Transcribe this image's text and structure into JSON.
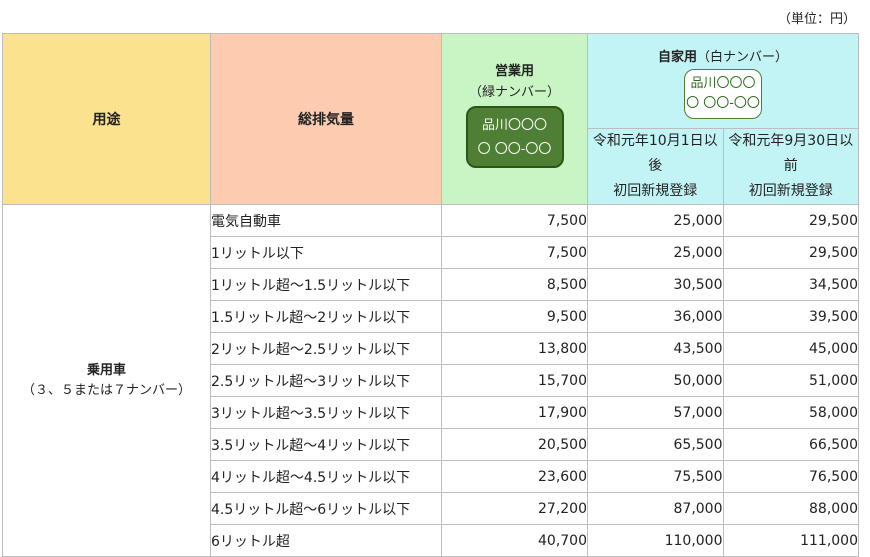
{
  "unit_label": "（単位：円）",
  "header": {
    "use": "用途",
    "displacement": "総排気量",
    "business": {
      "title": "営業用",
      "sub": "（緑ナンバー）",
      "plate_line1": "品川〇〇〇",
      "plate_line2": "〇 〇〇-〇〇"
    },
    "private": {
      "title": "自家用",
      "sub": "（白ナンバー）",
      "plate_line1": "品川〇〇〇",
      "plate_line2": "〇 〇〇-〇〇",
      "after": {
        "line1": "令和元年10月1日以後",
        "line2": "初回新規登録"
      },
      "before": {
        "line1": "令和元年9月30日以前",
        "line2": "初回新規登録"
      }
    }
  },
  "category": {
    "name": "乗用車",
    "sub": "（３、５または７ナンバー）"
  },
  "rows": [
    {
      "disp": "電気自動車",
      "business": "7,500",
      "after": "25,000",
      "before": "29,500"
    },
    {
      "disp": "1リットル以下",
      "business": "7,500",
      "after": "25,000",
      "before": "29,500"
    },
    {
      "disp": "1リットル超～1.5リットル以下",
      "business": "8,500",
      "after": "30,500",
      "before": "34,500"
    },
    {
      "disp": "1.5リットル超～2リットル以下",
      "business": "9,500",
      "after": "36,000",
      "before": "39,500"
    },
    {
      "disp": "2リットル超～2.5リットル以下",
      "business": "13,800",
      "after": "43,500",
      "before": "45,000"
    },
    {
      "disp": "2.5リットル超～3リットル以下",
      "business": "15,700",
      "after": "50,000",
      "before": "51,000"
    },
    {
      "disp": "3リットル超～3.5リットル以下",
      "business": "17,900",
      "after": "57,000",
      "before": "58,000"
    },
    {
      "disp": "3.5リットル超～4リットル以下",
      "business": "20,500",
      "after": "65,500",
      "before": "66,500"
    },
    {
      "disp": "4リットル超～4.5リットル以下",
      "business": "23,600",
      "after": "75,500",
      "before": "76,500"
    },
    {
      "disp": "4.5リットル超～6リットル以下",
      "business": "27,200",
      "after": "87,000",
      "before": "88,000"
    },
    {
      "disp": "6リットル超",
      "business": "40,700",
      "after": "110,000",
      "before": "111,000"
    }
  ],
  "colors": {
    "use_header": "#fbe28e",
    "disp_header": "#fdccb0",
    "business_header": "#c9f5c4",
    "private_header": "#c2f3f5",
    "green_plate": "#4f7f34"
  }
}
